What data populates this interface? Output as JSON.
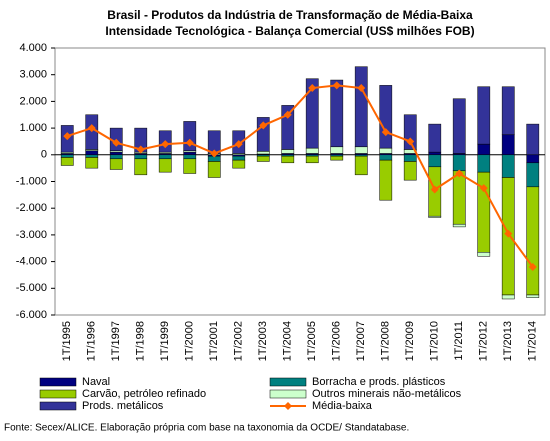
{
  "chart_data": {
    "type": "bar",
    "stacked": true,
    "title": [
      "Brasil - Produtos da Indústria de Transformação de Média-Baixa",
      "Intensidade Tecnológica - Balança Comercial (US$ milhões FOB)"
    ],
    "source": "Fonte: Secex/ALICE. Elaboração própria com base na taxonomia da OCDE/ Standatabase.",
    "categories": [
      "1T/1995",
      "1T/1996",
      "1T/1997",
      "1T/1998",
      "1T/1999",
      "1T/2000",
      "1T/2001",
      "1T/2002",
      "1T/2003",
      "1T/2004",
      "1T/2005",
      "1T/2006",
      "1T/2007",
      "1T/2008",
      "1T/2009",
      "1T/2010",
      "1T/2011",
      "1T/2012",
      "1T/2013",
      "1T/2014"
    ],
    "series": [
      {
        "name": "Naval",
        "type": "bar",
        "color": "#000080",
        "values": [
          50,
          150,
          100,
          50,
          50,
          100,
          -50,
          -50,
          30,
          50,
          50,
          50,
          50,
          50,
          50,
          100,
          50,
          400,
          750,
          -300
        ]
      },
      {
        "name": "Borracha e prods. plásticos",
        "type": "bar",
        "color": "#008080",
        "values": [
          -100,
          -100,
          -150,
          -150,
          -150,
          -150,
          -200,
          -150,
          -50,
          -50,
          -50,
          -50,
          -50,
          -200,
          -250,
          -450,
          -600,
          -650,
          -850,
          -900
        ]
      },
      {
        "name": "Carvão, petróleo refinado",
        "type": "bar",
        "color": "#99cc00",
        "values": [
          -300,
          -400,
          -400,
          -600,
          -500,
          -550,
          -600,
          -300,
          -200,
          -250,
          -250,
          -150,
          -700,
          -1500,
          -700,
          -1850,
          -2000,
          -3000,
          -4400,
          -4050
        ]
      },
      {
        "name": "Outros minerais não-metálicos",
        "type": "bar",
        "color": "#ccffcc",
        "values": [
          50,
          50,
          50,
          50,
          50,
          50,
          50,
          50,
          100,
          150,
          200,
          250,
          250,
          200,
          150,
          -50,
          -100,
          -150,
          -150,
          -100
        ]
      },
      {
        "name": "Prods. metálicos",
        "type": "bar",
        "color": "#333399",
        "values": [
          1000,
          1300,
          850,
          900,
          800,
          1100,
          850,
          850,
          1270,
          1650,
          2600,
          2500,
          3000,
          2350,
          1300,
          1050,
          2050,
          2150,
          1800,
          1150
        ]
      },
      {
        "name": "Média-baixa",
        "type": "line",
        "color": "#ff6600",
        "values": [
          700,
          1000,
          450,
          200,
          400,
          450,
          50,
          400,
          1100,
          1500,
          2500,
          2600,
          2500,
          850,
          500,
          -1300,
          -700,
          -1250,
          -2950,
          -4200
        ]
      }
    ],
    "ylim": [
      -6000,
      4000
    ],
    "yticks": [
      {
        "value": -6000,
        "label": "-6.000"
      },
      {
        "value": -5000,
        "label": "-5.000"
      },
      {
        "value": -4000,
        "label": "-4.000"
      },
      {
        "value": -3000,
        "label": "-3.000"
      },
      {
        "value": -2000,
        "label": "-2.000"
      },
      {
        "value": -1000,
        "label": "-1.000"
      },
      0,
      {
        "value": 1000,
        "label": "1.000"
      },
      {
        "value": 2000,
        "label": "2.000"
      },
      {
        "value": 3000,
        "label": "3.000"
      },
      {
        "value": 4000,
        "label": "4.000"
      }
    ]
  }
}
